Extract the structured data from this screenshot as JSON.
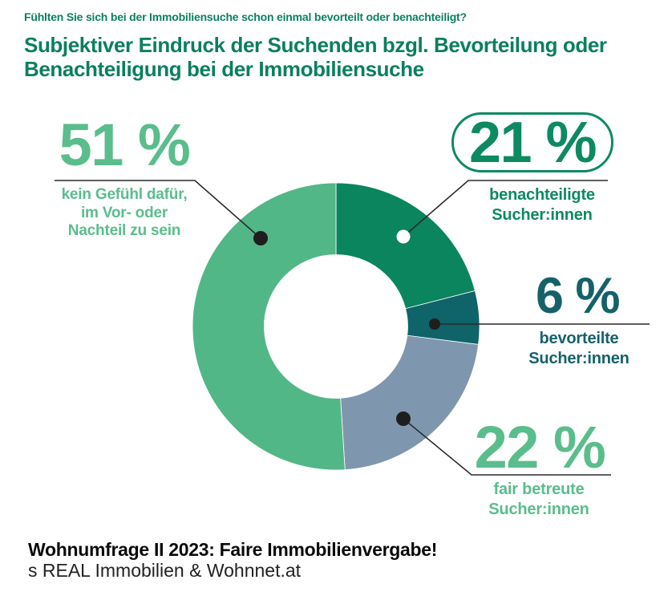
{
  "header": {
    "question": "Fühlten Sie sich bei der Immobiliensuche schon einmal bevorteilt oder benachteiligt?",
    "title_line1": "Subjektiver Eindruck der Suchenden bzgl. Bevorteilung oder",
    "title_line2": "Benachteiligung bei der Immobiliensuche",
    "title_color": "#0a7f5f"
  },
  "chart_data": {
    "type": "donut",
    "unit": "%",
    "direction": "clockwise",
    "start_angle_deg": 0,
    "inner_radius_ratio": 0.5,
    "legend_position": "callouts-around-chart",
    "series": [
      {
        "name": "benachteiligte Sucher:innen",
        "value": 21,
        "color": "#0a855e"
      },
      {
        "name": "bevorteilte Sucher:innen",
        "value": 6,
        "color": "#0e6468"
      },
      {
        "name": "fair betreute Sucher:innen",
        "value": 22,
        "color": "#7e97ae"
      },
      {
        "name": "kein Gefühl dafür, im Vor- oder Nachteil zu sein",
        "value": 51,
        "color": "#52b787"
      }
    ]
  },
  "callouts": {
    "neutral": {
      "value_label": "51 %",
      "lines": [
        "kein Gefühl dafür,",
        "im Vor- oder",
        "Nachteil zu sein"
      ],
      "color": "#5abd8c",
      "highlighted": false
    },
    "disadvantaged": {
      "value_label": "21 %",
      "lines": [
        "benachteiligte",
        "Sucher:innen"
      ],
      "color": "#0d8a60",
      "highlighted": true
    },
    "advantaged": {
      "value_label": "6 %",
      "lines": [
        "bevorteilte",
        "Sucher:innen"
      ],
      "color": "#15616a",
      "highlighted": false
    },
    "fair": {
      "value_label": "22 %",
      "lines": [
        "fair betreute",
        "Sucher:innen"
      ],
      "color": "#5abd8c",
      "highlighted": false
    }
  },
  "footer": {
    "source_bold": "Wohnumfrage II 2023: Faire Immobilienvergabe!",
    "source_regular": "s REAL Immobilien & Wohnnet.at"
  }
}
